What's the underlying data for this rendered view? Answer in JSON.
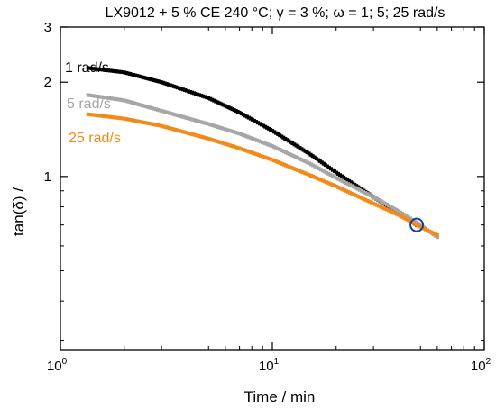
{
  "chart_data": {
    "type": "scatter",
    "title": "LX9012 + 5 % CE   240 °C; γ = 3 %; ω = 1; 5; 25 rad/s",
    "xlabel": "Time  /  min",
    "ylabel": "tan(δ)  /",
    "xscale": "log",
    "yscale": "log",
    "xlim": [
      1,
      100
    ],
    "ylim": [
      0.28,
      3
    ],
    "x_ticks": [
      1,
      10,
      100
    ],
    "x_tick_labels": [
      {
        "base": "10",
        "exp": "0"
      },
      {
        "base": "10",
        "exp": "1"
      },
      {
        "base": "10",
        "exp": "2"
      }
    ],
    "y_ticks": [
      1,
      2,
      3
    ],
    "y_tick_labels": [
      "1",
      "2",
      "3"
    ],
    "grid": false,
    "legend": "inline labels, top-left",
    "series": [
      {
        "name": "1 rad/s",
        "color": "#000000",
        "x": [
          1.35,
          2,
          3,
          5,
          7,
          10,
          15,
          20,
          30,
          40,
          48
        ],
        "y": [
          2.22,
          2.15,
          2.0,
          1.78,
          1.6,
          1.4,
          1.18,
          1.03,
          0.86,
          0.76,
          0.7
        ]
      },
      {
        "name": "5 rad/s",
        "color": "#a6a6a6",
        "x": [
          1.35,
          2,
          3,
          5,
          7,
          10,
          15,
          20,
          30,
          40,
          50,
          60
        ],
        "y": [
          1.82,
          1.75,
          1.62,
          1.47,
          1.37,
          1.25,
          1.1,
          0.99,
          0.86,
          0.77,
          0.7,
          0.64
        ]
      },
      {
        "name": "25 rad/s",
        "color": "#f28a1a",
        "x": [
          1.35,
          2,
          3,
          5,
          7,
          10,
          15,
          20,
          30,
          40,
          50,
          60
        ],
        "y": [
          1.58,
          1.53,
          1.45,
          1.32,
          1.23,
          1.13,
          1.01,
          0.93,
          0.82,
          0.75,
          0.69,
          0.65
        ]
      }
    ],
    "annotations": [
      {
        "type": "circle",
        "x": 48,
        "y": 0.7,
        "color": "#1f3f8f"
      }
    ]
  }
}
